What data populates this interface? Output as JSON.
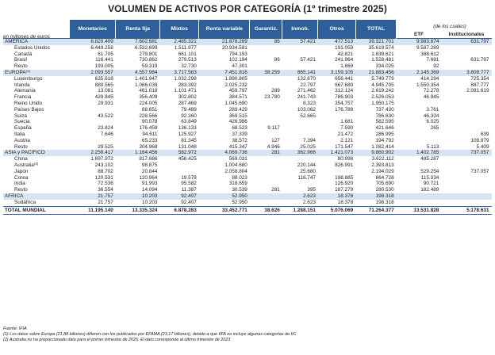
{
  "title": "VOLUMEN DE ACTIVOS POR CATEGORÍA (1º trimestre 2025)",
  "units_label": "en millones de euros",
  "de_los_cuales_label": "(de los cuales)",
  "columns": [
    "Monetarios",
    "Renta fija",
    "Mixtos",
    "Renta variable",
    "Garantiz.",
    "Inmob.",
    "Otros",
    "TOTAL",
    "ETF",
    "Institucionales"
  ],
  "rows": [
    {
      "type": "reg",
      "cells": [
        "AMÉRICA",
        "6.820.409",
        "7.602.681",
        "2.485.321",
        "21.878.269",
        "86",
        "57.421",
        "477.513",
        "39.321.701",
        "9.983.674",
        "631.797"
      ]
    },
    {
      "type": "sub",
      "cells": [
        "Estados Unidos",
        "6.449.258",
        "6.532.699",
        "1.511.977",
        "20.934.581",
        "",
        "",
        "191.059",
        "35.619.574",
        "9.587.289",
        ""
      ]
    },
    {
      "type": "sub",
      "cells": [
        "Canadá",
        "61.705",
        "279.801",
        "661.101",
        "794.193",
        "",
        "",
        "42.821",
        "1.839.621",
        "388.612",
        ""
      ]
    },
    {
      "type": "sub",
      "cells": [
        "Brasil",
        "116.441",
        "730.862",
        "279.513",
        "102.194",
        "86",
        "57.421",
        "241.964",
        "1.528.481",
        "7.681",
        "631.797"
      ]
    },
    {
      "type": "sub",
      "cells": [
        "Resto",
        "193.005",
        "59.319",
        "32.730",
        "47.301",
        "",
        "",
        "1.669",
        "334.025",
        "92",
        ""
      ]
    },
    {
      "type": "reg",
      "cells": [
        "EUROPA",
        "2.093.557",
        "4.557.984",
        "3.717.583",
        "7.451.816",
        "38.259",
        "865.141",
        "3.159.105",
        "21.883.456",
        "2.145.369",
        "3.809.777"
      ],
      "sup": "(1)"
    },
    {
      "type": "sub",
      "cells": [
        "Luxemburgo",
        "635.618",
        "1.401.947",
        "1.032.298",
        "1.890.805",
        "",
        "132.670",
        "656.441",
        "5.749.779",
        "414.294",
        "725.354"
      ]
    },
    {
      "type": "sub",
      "cells": [
        "Irlanda",
        "880.565",
        "1.066.039",
        "283.392",
        "2.025.232",
        "",
        "22.797",
        "667.680",
        "4.945.705",
        "1.550.354",
        "887.777"
      ]
    },
    {
      "type": "sub",
      "cells": [
        "Alemania",
        "13.081",
        "461.018",
        "1.101.471",
        "459.797",
        "289",
        "271.462",
        "312.124",
        "2.619.242",
        "72.278",
        "2.081.619"
      ]
    },
    {
      "type": "sub",
      "cells": [
        "Francia",
        "429.845",
        "356.409",
        "302.802",
        "384.571",
        "23.780",
        "241.743",
        "786.903",
        "2.526.053",
        "46.945",
        ""
      ]
    },
    {
      "type": "sub",
      "cells": [
        "Reino Unido",
        "29.931",
        "224.005",
        "287.469",
        "1.045.690",
        "",
        "8.323",
        "354.757",
        "1.950.175",
        "",
        ""
      ]
    },
    {
      "type": "sub",
      "cells": [
        "Países Bajos",
        "",
        "88.651",
        "79.489",
        "289.429",
        "",
        "103.062",
        "176.789",
        "737.430",
        "3.761",
        ""
      ]
    },
    {
      "type": "sub",
      "cells": [
        "Suiza",
        "43.522",
        "228.566",
        "92.360",
        "369.515",
        "",
        "52.665",
        "",
        "786.630",
        "46.334",
        ""
      ]
    },
    {
      "type": "sub",
      "cells": [
        "Suecia",
        "",
        "90.078",
        "63.849",
        "426.986",
        "",
        "",
        "1.681",
        "582.595",
        "6.025",
        ""
      ]
    },
    {
      "type": "sub",
      "cells": [
        "España",
        "23.824",
        "176.459",
        "136.133",
        "68.523",
        "9.117",
        "",
        "7.590",
        "421.646",
        "265",
        ""
      ]
    },
    {
      "type": "sub",
      "cells": [
        "Italia",
        "7.646",
        "94.611",
        "125.927",
        "37.339",
        "",
        "",
        "21.472",
        "286.995",
        "",
        "639"
      ]
    },
    {
      "type": "sub",
      "cells": [
        "Austria",
        "",
        "65.233",
        "81.345",
        "38.572",
        "127",
        "7.394",
        "2.121",
        "194.792",
        "",
        "108.979"
      ]
    },
    {
      "type": "sub",
      "cells": [
        "Resto",
        "29.525",
        "304.968",
        "131.048",
        "415.347",
        "4.946",
        "25.025",
        "171.547",
        "1.082.414",
        "5.113",
        "5.409"
      ]
    },
    {
      "type": "reg",
      "cells": [
        "ASIA y PACÍFICO",
        "2.259.417",
        "1.164.456",
        "582.972",
        "4.069.736",
        "281",
        "362.966",
        "1.421.073",
        "9.860.902",
        "1.402.785",
        "737.057"
      ]
    },
    {
      "type": "sub",
      "cells": [
        "China",
        "1.697.972",
        "817.686",
        "456.425",
        "569.031",
        "",
        "",
        "80.998",
        "3.622.112",
        "485.287",
        ""
      ]
    },
    {
      "type": "sub",
      "cells": [
        "Australia",
        "243.102",
        "98.875",
        "",
        "1.004.680",
        "",
        "220.144",
        "826.991",
        "2.393.813",
        "",
        ""
      ],
      "sup": "(2)"
    },
    {
      "type": "sub",
      "cells": [
        "Japón",
        "88.702",
        "20.844",
        "",
        "2.058.804",
        "",
        "25.680",
        "",
        "2.194.029",
        "529.254",
        "737.057"
      ]
    },
    {
      "type": "sub",
      "cells": [
        "Corea",
        "120.531",
        "120.964",
        "19.578",
        "88.023",
        "",
        "116.747",
        "198.885",
        "664.728",
        "115.034",
        ""
      ]
    },
    {
      "type": "sub",
      "cells": [
        "India",
        "72.536",
        "91.993",
        "95.582",
        "318.659",
        "",
        "",
        "126.920",
        "705.690",
        "90.721",
        ""
      ]
    },
    {
      "type": "sub",
      "cells": [
        "Resto",
        "36.554",
        "14.094",
        "11.387",
        "30.539",
        "281",
        "395",
        "187.279",
        "280.530",
        "182.489",
        ""
      ]
    },
    {
      "type": "reg",
      "cells": [
        "ÁFRICA",
        "21.757",
        "10.203",
        "92.407",
        "52.950",
        "",
        "2.623",
        "18.378",
        "198.318",
        "",
        ""
      ]
    },
    {
      "type": "sub",
      "cells": [
        "Sudáfrica",
        "21.757",
        "10.203",
        "92.407",
        "52.950",
        "",
        "2.623",
        "18.378",
        "198.318",
        "",
        ""
      ]
    },
    {
      "type": "total",
      "cells": [
        "TOTAL MUNDIAL",
        "11.195.140",
        "13.335.324",
        "6.878.283",
        "33.452.771",
        "38.626",
        "1.288.151",
        "5.076.069",
        "71.264.377",
        "13.531.828",
        "5.178.631"
      ]
    }
  ],
  "notes": [
    "Fuente: IFIA",
    "(1) Los datos sobre Europa (21,88 billones) difieren con los publicados por EFAMA (23,17 billones), debido a que IIFA no incluye algunas categorías de IIC",
    "(2) Australia no ha proporcionado dato para el primer trimestre de 2025. El dato corresponde al último trimestre de 2023"
  ]
}
